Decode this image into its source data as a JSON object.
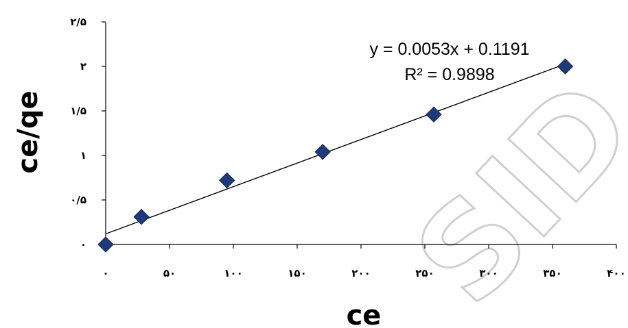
{
  "chart_data": {
    "type": "scatter",
    "title": "",
    "xlabel": "ce",
    "ylabel": "ce/qe",
    "xlim": [
      0,
      400
    ],
    "ylim": [
      0,
      2.5
    ],
    "x_ticks": [
      0,
      50,
      100,
      150,
      200,
      250,
      300,
      350,
      400
    ],
    "y_ticks": [
      0,
      0.5,
      1,
      1.5,
      2,
      2.5
    ],
    "x_tick_labels": [
      "۰",
      "۵۰",
      "۱۰۰",
      "۱۵۰",
      "۲۰۰",
      "۲۵۰",
      "۳۰۰",
      "۳۵۰",
      "۴۰۰"
    ],
    "y_tick_labels": [
      "۰",
      "۰/۵",
      "۱",
      "۱/۵",
      "۲",
      "۲/۵"
    ],
    "points": {
      "x": [
        0,
        28,
        95,
        170,
        257,
        360
      ],
      "y": [
        0,
        0.31,
        0.72,
        1.04,
        1.46,
        2.0
      ]
    },
    "trendline": {
      "slope": 0.0053,
      "intercept": 0.1191,
      "equation": "y = 0.0053x + 0.1191",
      "r_squared": "R² = 0.9898"
    },
    "grid": false,
    "legend": "none",
    "marker": "diamond",
    "marker_color": "#1f3a7a"
  },
  "watermark": "SID"
}
